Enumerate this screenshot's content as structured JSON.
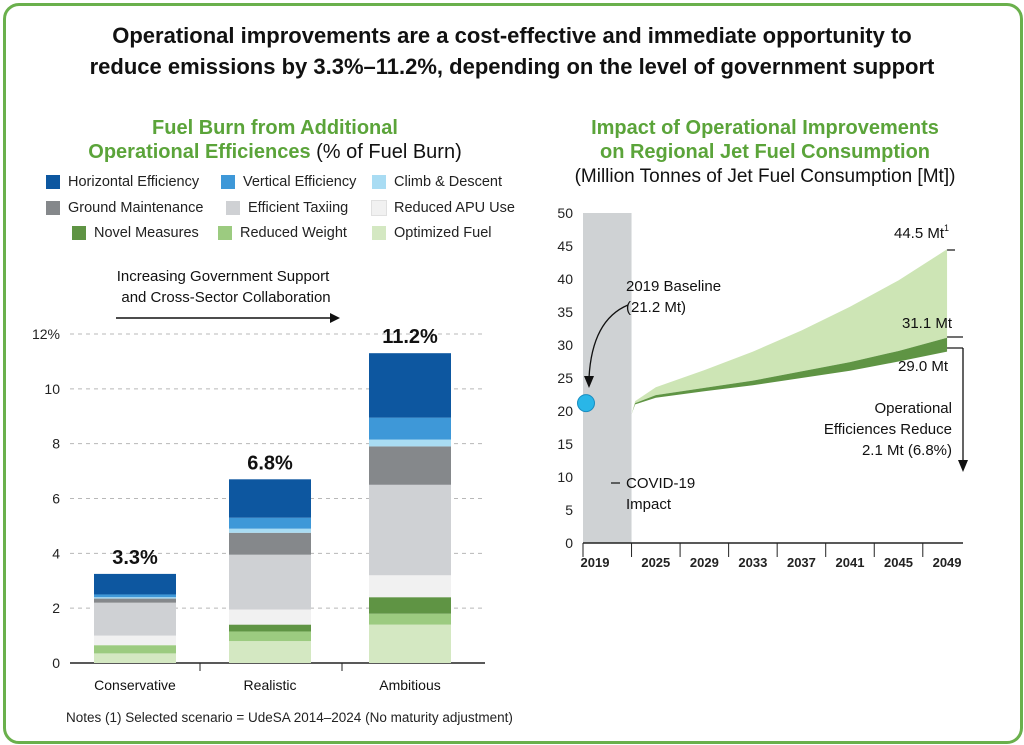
{
  "title": {
    "line1": "Operational improvements are a cost-effective and immediate opportunity to",
    "line2": "reduce emissions by 3.3%–11.2%, depending on the level of government support"
  },
  "left_chart": {
    "title_line1": "Fuel Burn from Additional",
    "title_line2": "Operational Efficiences",
    "title_suffix": " (% of Fuel Burn)",
    "arrow_text_line1": "Increasing Government Support",
    "arrow_text_line2": "and Cross-Sector Collaboration",
    "notes": "Notes (1) Selected scenario = UdeSA 2014–2024 (No maturity adjustment)"
  },
  "right_chart": {
    "title_line1": "Impact of Operational Improvements",
    "title_line2": "on Regional Jet Fuel Consumption",
    "subtitle": "(Million Tonnes of Jet Fuel Consumption [Mt])"
  },
  "colors": {
    "frame": "#6ab04c",
    "title_green": "#5ba43a",
    "covid_band": "#cfd2d4",
    "baseline_dot": "#29b6e8"
  },
  "chart_data": [
    {
      "type": "bar",
      "stacked": true,
      "categories": [
        "Conservative",
        "Realistic",
        "Ambitious"
      ],
      "totals_labels": [
        "3.3%",
        "6.8%",
        "11.2%"
      ],
      "ylim": [
        0,
        12
      ],
      "yticks": [
        "0",
        "2",
        "4",
        "6",
        "8",
        "10",
        "12%"
      ],
      "grid": true,
      "legend_position": "top",
      "series": [
        {
          "name": "Optimized Fuel",
          "color": "#d4e8c2",
          "values": [
            0.35,
            0.8,
            1.4
          ]
        },
        {
          "name": "Reduced Weight",
          "color": "#9ccb80",
          "values": [
            0.3,
            0.35,
            0.4
          ]
        },
        {
          "name": "Novel Measures",
          "color": "#5f9444",
          "values": [
            0.0,
            0.25,
            0.6
          ]
        },
        {
          "name": "Reduced APU Use",
          "color": "#f1f1f1",
          "values": [
            0.35,
            0.55,
            0.8
          ]
        },
        {
          "name": "Efficient Taxiing",
          "color": "#cfd1d4",
          "values": [
            1.2,
            2.0,
            3.3
          ]
        },
        {
          "name": "Ground Maintenance",
          "color": "#85888b",
          "values": [
            0.15,
            0.8,
            1.4
          ]
        },
        {
          "name": "Climb & Descent",
          "color": "#a9dcf3",
          "values": [
            0.05,
            0.15,
            0.25
          ]
        },
        {
          "name": "Vertical Efficiency",
          "color": "#3e98d8",
          "values": [
            0.1,
            0.4,
            0.8
          ]
        },
        {
          "name": "Horizontal Efficiency",
          "color": "#0d57a0",
          "values": [
            0.75,
            1.4,
            2.35
          ]
        }
      ]
    },
    {
      "type": "area",
      "x_ticks": [
        "2019",
        "2025",
        "2029",
        "2033",
        "2037",
        "2041",
        "2045",
        "2049"
      ],
      "x_range": [
        2019,
        2050
      ],
      "ylim": [
        0,
        50
      ],
      "yticks": [
        "0",
        "5",
        "10",
        "15",
        "20",
        "25",
        "30",
        "35",
        "40",
        "45",
        "50"
      ],
      "covid_band_x": [
        2019,
        2023
      ],
      "series": [
        {
          "name": "Upper",
          "color": "#cde5b5",
          "x": [
            2023,
            2023.3,
            2025,
            2029,
            2033,
            2037,
            2041,
            2045,
            2049
          ],
          "y": [
            19.5,
            21.5,
            23.6,
            26.2,
            29.0,
            32.2,
            35.8,
            39.8,
            44.5
          ]
        },
        {
          "name": "Middle",
          "color": "#5f9444",
          "x": [
            2023,
            2023.3,
            2025,
            2029,
            2033,
            2037,
            2041,
            2045,
            2049
          ],
          "y": [
            19.5,
            21.2,
            22.4,
            23.5,
            24.6,
            26.0,
            27.4,
            29.1,
            31.1
          ]
        },
        {
          "name": "Lower",
          "x": [
            2023,
            2023.3,
            2025,
            2029,
            2033,
            2037,
            2041,
            2045,
            2049
          ],
          "y": [
            19.5,
            21.0,
            22.0,
            23.0,
            23.9,
            25.0,
            26.1,
            27.5,
            29.0
          ]
        }
      ],
      "baseline": {
        "x": 2019,
        "y": 21.2,
        "label_line1": "2019 Baseline",
        "label_line2": "(21.2 Mt)"
      },
      "annotations": {
        "upper": "44.5 Mt",
        "upper_sup": "1",
        "middle": "31.1 Mt",
        "lower": "29.0 Mt",
        "covid_line1": "COVID-19",
        "covid_line2": "Impact",
        "reduce_line1": "Operational",
        "reduce_line2": "Efficiences Reduce",
        "reduce_line3": "2.1 Mt (6.8%)"
      }
    }
  ]
}
